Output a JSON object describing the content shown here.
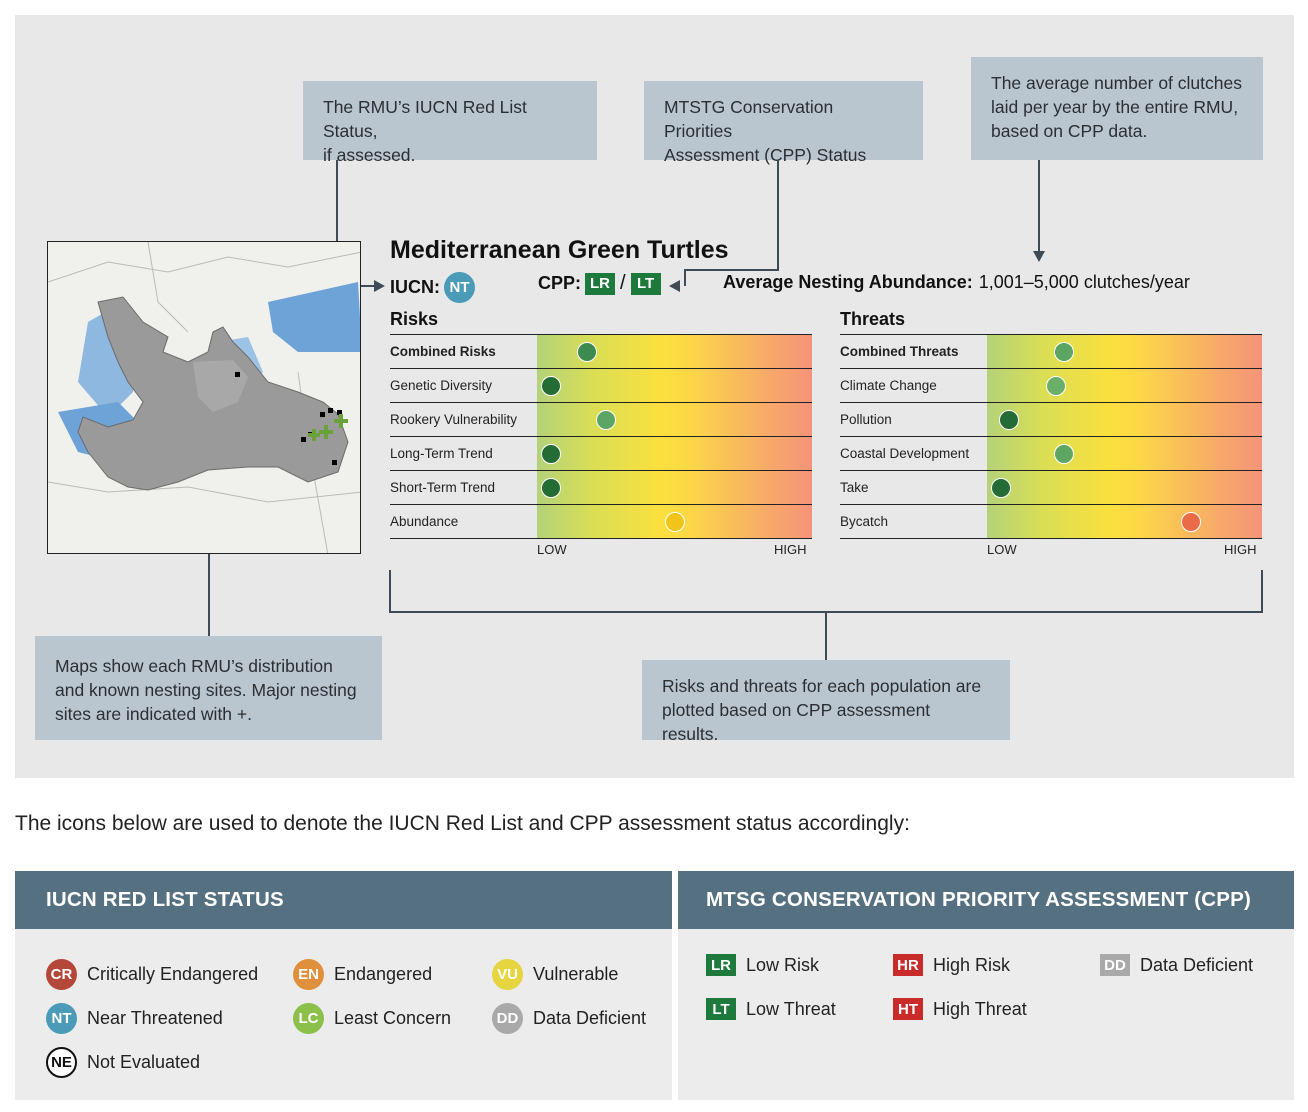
{
  "callouts": {
    "iucn": "The RMU’s IUCN Red List Status,\nif assessed.",
    "cpp": "MTSTG Conservation Priorities\nAssessment (CPP) Status",
    "abundance": "The average number of clutches\nlaid per year by the entire RMU,\nbased on CPP data.",
    "maps": "Maps show each RMU’s distribution\nand known nesting sites. Major nesting\nsites are indicated with +.",
    "plots": "Risks and threats for each population are\nplotted based on CPP assessment results."
  },
  "rmu": {
    "title": "Mediterranean Green Turtles",
    "iucn_label": "IUCN:",
    "iucn_status": "NT",
    "cpp_label": "CPP:",
    "cpp_risk": "LR",
    "cpp_sep": "/",
    "cpp_threat": "LT",
    "abundance_label": "Average Nesting Abundance:",
    "abundance_value": "1,001–5,000 clutches/year"
  },
  "risks": {
    "title": "Risks",
    "low_label": "LOW",
    "high_label": "HIGH",
    "rows": [
      {
        "label": "Combined Risks",
        "level": 0.18,
        "color": "#3d8a4f",
        "bold": true
      },
      {
        "label": "Genetic Diversity",
        "level": 0.05,
        "color": "#246b36",
        "bold": false
      },
      {
        "label": "Rookery Vulnerability",
        "level": 0.25,
        "color": "#5da563",
        "bold": false
      },
      {
        "label": "Long-Term Trend",
        "level": 0.05,
        "color": "#246b36",
        "bold": false
      },
      {
        "label": "Short-Term Trend",
        "level": 0.05,
        "color": "#246b36",
        "bold": false
      },
      {
        "label": "Abundance",
        "level": 0.5,
        "color": "#f0c419",
        "bold": false
      }
    ]
  },
  "threats": {
    "title": "Threats",
    "low_label": "LOW",
    "high_label": "HIGH",
    "rows": [
      {
        "label": "Combined Threats",
        "level": 0.28,
        "color": "#5da563",
        "bold": true
      },
      {
        "label": "Climate Change",
        "level": 0.25,
        "color": "#6aae6a",
        "bold": false
      },
      {
        "label": "Pollution",
        "level": 0.08,
        "color": "#246b36",
        "bold": false
      },
      {
        "label": "Coastal Development",
        "level": 0.28,
        "color": "#5da563",
        "bold": false
      },
      {
        "label": "Take",
        "level": 0.05,
        "color": "#246b36",
        "bold": false
      },
      {
        "label": "Bycatch",
        "level": 0.74,
        "color": "#ea6b47",
        "bold": false
      }
    ]
  },
  "intro": "The icons below are used to denote the IUCN Red List and CPP assessment status accordingly:",
  "legend_iucn": {
    "title": "IUCN RED LIST STATUS",
    "items": [
      {
        "code": "CR",
        "label": "Critically Endangered",
        "color": "#b5473a"
      },
      {
        "code": "EN",
        "label": "Endangered",
        "color": "#e08f3c"
      },
      {
        "code": "VU",
        "label": "Vulnerable",
        "color": "#e6d440"
      },
      {
        "code": "NT",
        "label": "Near Threatened",
        "color": "#4b9bb8"
      },
      {
        "code": "LC",
        "label": "Least Concern",
        "color": "#8cc04b"
      },
      {
        "code": "DD",
        "label": "Data Deficient",
        "color": "#a9a9a9"
      },
      {
        "code": "NE",
        "label": "Not Evaluated",
        "color": "#ffffff"
      }
    ]
  },
  "legend_cpp": {
    "title": "MTSG CONSERVATION PRIORITY ASSESSMENT (CPP)",
    "items": [
      {
        "code": "LR",
        "label": "Low Risk",
        "color": "#1e7a3c"
      },
      {
        "code": "HR",
        "label": "High Risk",
        "color": "#c92a2a"
      },
      {
        "code": "DD",
        "label": "Data Deficient",
        "color": "#a9a9a9"
      },
      {
        "code": "LT",
        "label": "Low Threat",
        "color": "#1e7a3c"
      },
      {
        "code": "HT",
        "label": "High Threat",
        "color": "#c92a2a"
      }
    ]
  }
}
